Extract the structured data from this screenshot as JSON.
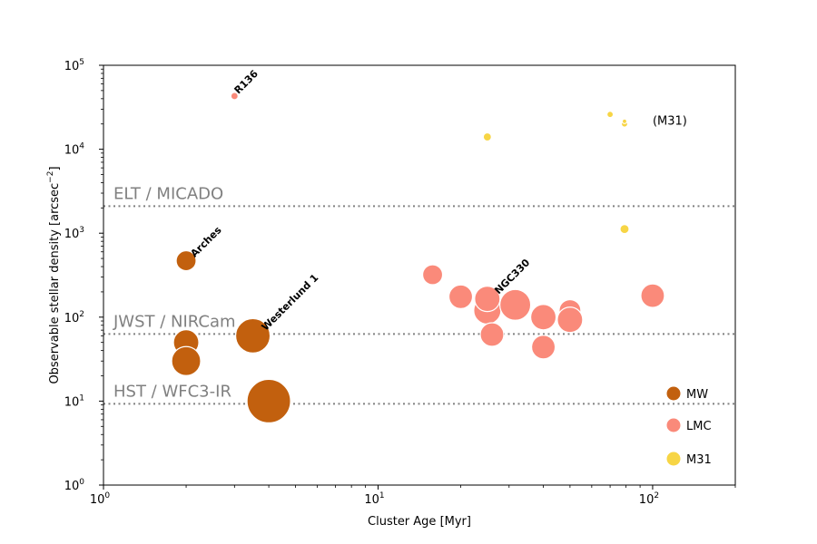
{
  "chart_data": {
    "type": "scatter",
    "xlabel": "Cluster Age [Myr]",
    "ylabel": "Observable stellar density [arcsec",
    "ylabel_exp": "−2",
    "ylabel_close": "]",
    "xscale": "log",
    "yscale": "log",
    "xlim": [
      1,
      200
    ],
    "ylim": [
      1,
      100000
    ],
    "x_ticks": [
      {
        "value": 1,
        "base": "10",
        "exp": "0"
      },
      {
        "value": 10,
        "base": "10",
        "exp": "1"
      },
      {
        "value": 100,
        "base": "10",
        "exp": "2"
      }
    ],
    "y_ticks": [
      {
        "value": 1,
        "base": "10",
        "exp": "0"
      },
      {
        "value": 10,
        "base": "10",
        "exp": "1"
      },
      {
        "value": 100,
        "base": "10",
        "exp": "2"
      },
      {
        "value": 1000,
        "base": "10",
        "exp": "3"
      },
      {
        "value": 10000,
        "base": "10",
        "exp": "4"
      },
      {
        "value": 100000,
        "base": "10",
        "exp": "5"
      }
    ],
    "reference_lines": [
      {
        "label": "ELT / MICADO",
        "y": 2100
      },
      {
        "label": "JWST / NIRCam",
        "y": 63
      },
      {
        "label": "HST / WFC3-IR",
        "y": 9.3
      }
    ],
    "series": [
      {
        "name": "MW",
        "color": "#c2600e",
        "points": [
          {
            "x": 2,
            "y": 470,
            "s": 22
          },
          {
            "x": 2,
            "y": 50,
            "s": 28
          },
          {
            "x": 2,
            "y": 30,
            "s": 32
          },
          {
            "x": 3.5,
            "y": 60,
            "s": 38
          },
          {
            "x": 4,
            "y": 10,
            "s": 48
          }
        ]
      },
      {
        "name": "LMC",
        "color": "#fa8a7a",
        "points": [
          {
            "x": 3,
            "y": 43000,
            "s": 8
          },
          {
            "x": 15.8,
            "y": 320,
            "s": 22
          },
          {
            "x": 20,
            "y": 175,
            "s": 26
          },
          {
            "x": 25,
            "y": 120,
            "s": 30
          },
          {
            "x": 25,
            "y": 165,
            "s": 28
          },
          {
            "x": 26,
            "y": 62,
            "s": 26
          },
          {
            "x": 31.6,
            "y": 140,
            "s": 34
          },
          {
            "x": 40,
            "y": 100,
            "s": 28
          },
          {
            "x": 40,
            "y": 44,
            "s": 26
          },
          {
            "x": 50,
            "y": 120,
            "s": 24
          },
          {
            "x": 50,
            "y": 93,
            "s": 28
          },
          {
            "x": 100,
            "y": 180,
            "s": 26
          }
        ]
      },
      {
        "name": "M31",
        "color": "#f7d545",
        "points": [
          {
            "x": 25,
            "y": 14000,
            "s": 9
          },
          {
            "x": 70,
            "y": 26000,
            "s": 7
          },
          {
            "x": 79,
            "y": 20000,
            "s": 7
          },
          {
            "x": 79,
            "y": 21500,
            "s": 5
          },
          {
            "x": 79,
            "y": 1120,
            "s": 10
          }
        ]
      }
    ],
    "annotations": [
      {
        "text": "R136",
        "x": 3.1,
        "y": 45000,
        "style": "bold"
      },
      {
        "text": "Arches",
        "x": 2.15,
        "y": 510,
        "style": "bold"
      },
      {
        "text": "Westerlund 1",
        "x": 3.9,
        "y": 68,
        "style": "bold"
      },
      {
        "text": "NGC330",
        "x": 27.5,
        "y": 185,
        "style": "bold"
      },
      {
        "text": "(M31)",
        "x": 100,
        "y": 19500,
        "style": "plain"
      }
    ],
    "legend": {
      "placement": "lower-right",
      "entries": [
        {
          "label": "MW",
          "color": "#c2600e"
        },
        {
          "label": "LMC",
          "color": "#fa8a7a"
        },
        {
          "label": "M31",
          "color": "#f7d545"
        }
      ]
    }
  }
}
